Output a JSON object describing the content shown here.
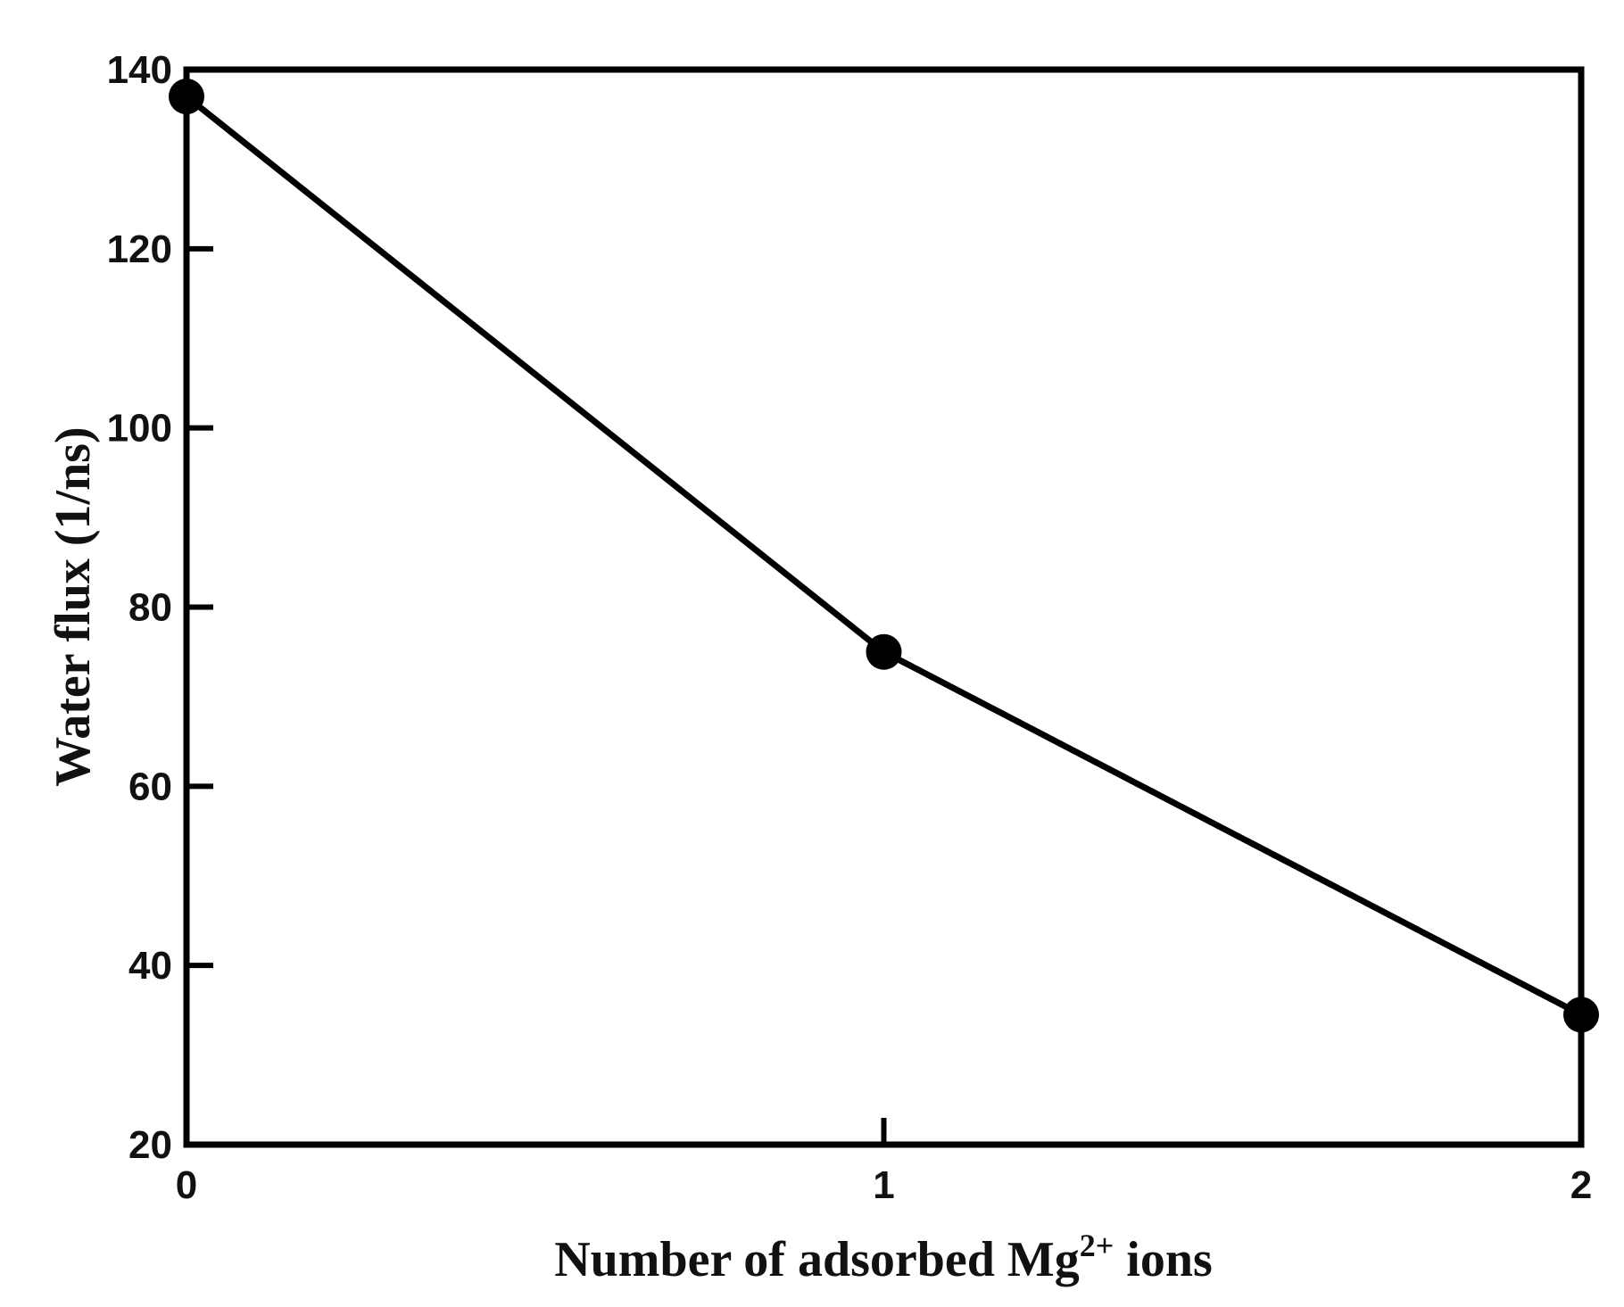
{
  "chart_data": {
    "type": "line",
    "title": "",
    "xlabel": "Number of adsorbed Mg",
    "xlabel_superscript": "2+",
    "xlabel_suffix": " ions",
    "ylabel": "Water flux (1/ns)",
    "xlim": [
      0,
      2
    ],
    "ylim": [
      20,
      140
    ],
    "xticks": [
      "0",
      "1",
      "2"
    ],
    "yticks": [
      "20",
      "40",
      "60",
      "80",
      "100",
      "120",
      "140"
    ],
    "grid": false,
    "legend": "none",
    "series": [
      {
        "x": [
          0,
          1,
          2
        ],
        "y": [
          137,
          75,
          34.5
        ]
      }
    ],
    "colors": {
      "line": "#000000",
      "marker": "#000000",
      "frame": "#000000"
    }
  }
}
